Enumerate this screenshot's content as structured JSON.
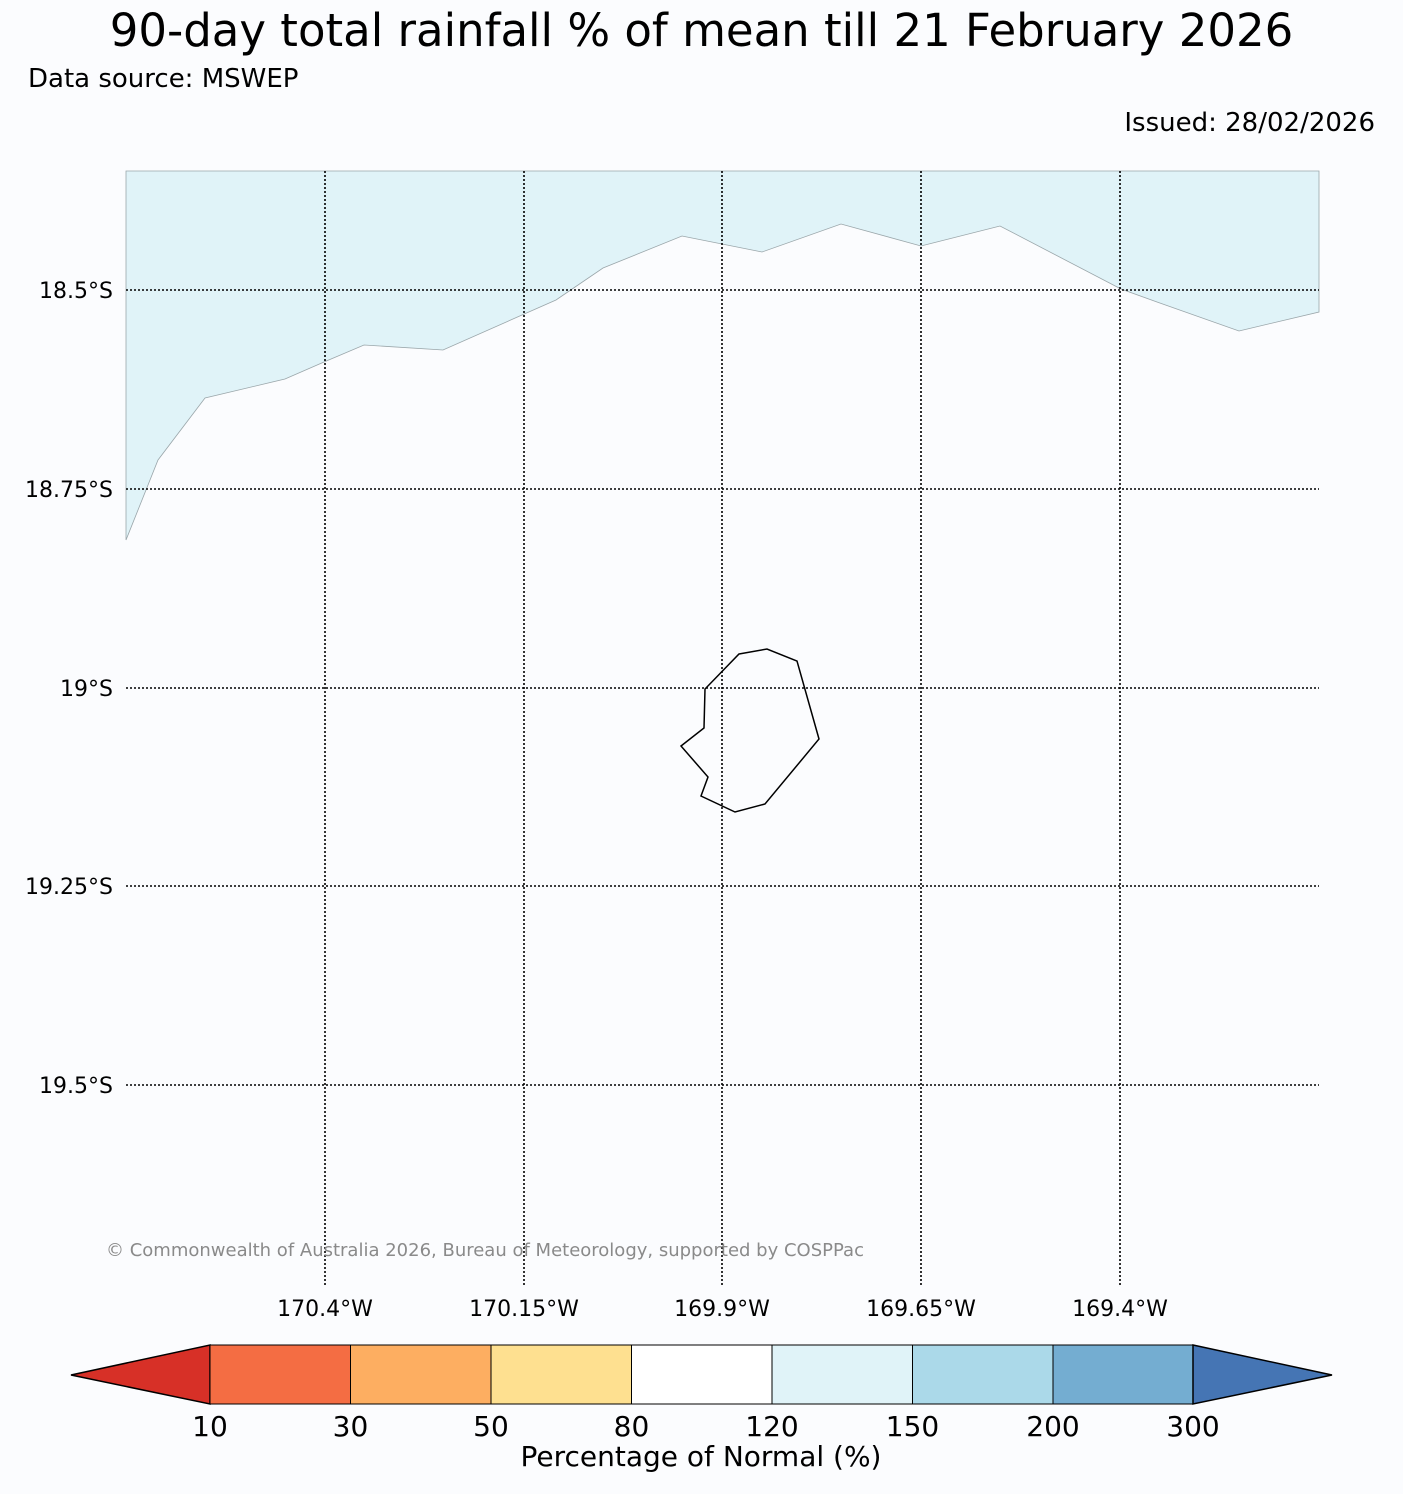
{
  "title": "90-day total rainfall % of mean till 21 February 2026",
  "source": "Data source: MSWEP",
  "issued": "Issued: 28/02/2026",
  "copyright": "© Commonwealth of Australia 2026, Bureau of Meteorology, supported by COSPPac",
  "map": {
    "lat_labels": [
      "18.5°S",
      "18.75°S",
      "19°S",
      "19.25°S",
      "19.5°S"
    ],
    "lon_labels": [
      "170.4°W",
      "170.15°W",
      "169.9°W",
      "169.65°W",
      "169.4°W"
    ],
    "shaded_region_category": "120-150",
    "shaded_color": "#e0f3f8",
    "background_color": "#fbfcfe",
    "island_outline": "Niue"
  },
  "colorbar": {
    "label": "Percentage of Normal (%)",
    "ticks": [
      "10",
      "30",
      "50",
      "80",
      "120",
      "150",
      "200",
      "300"
    ],
    "colors": [
      "#d73027",
      "#f46d43",
      "#fdae61",
      "#fee090",
      "#ffffff",
      "#e0f3f8",
      "#abd9e9",
      "#74add1",
      "#4575b4"
    ]
  }
}
